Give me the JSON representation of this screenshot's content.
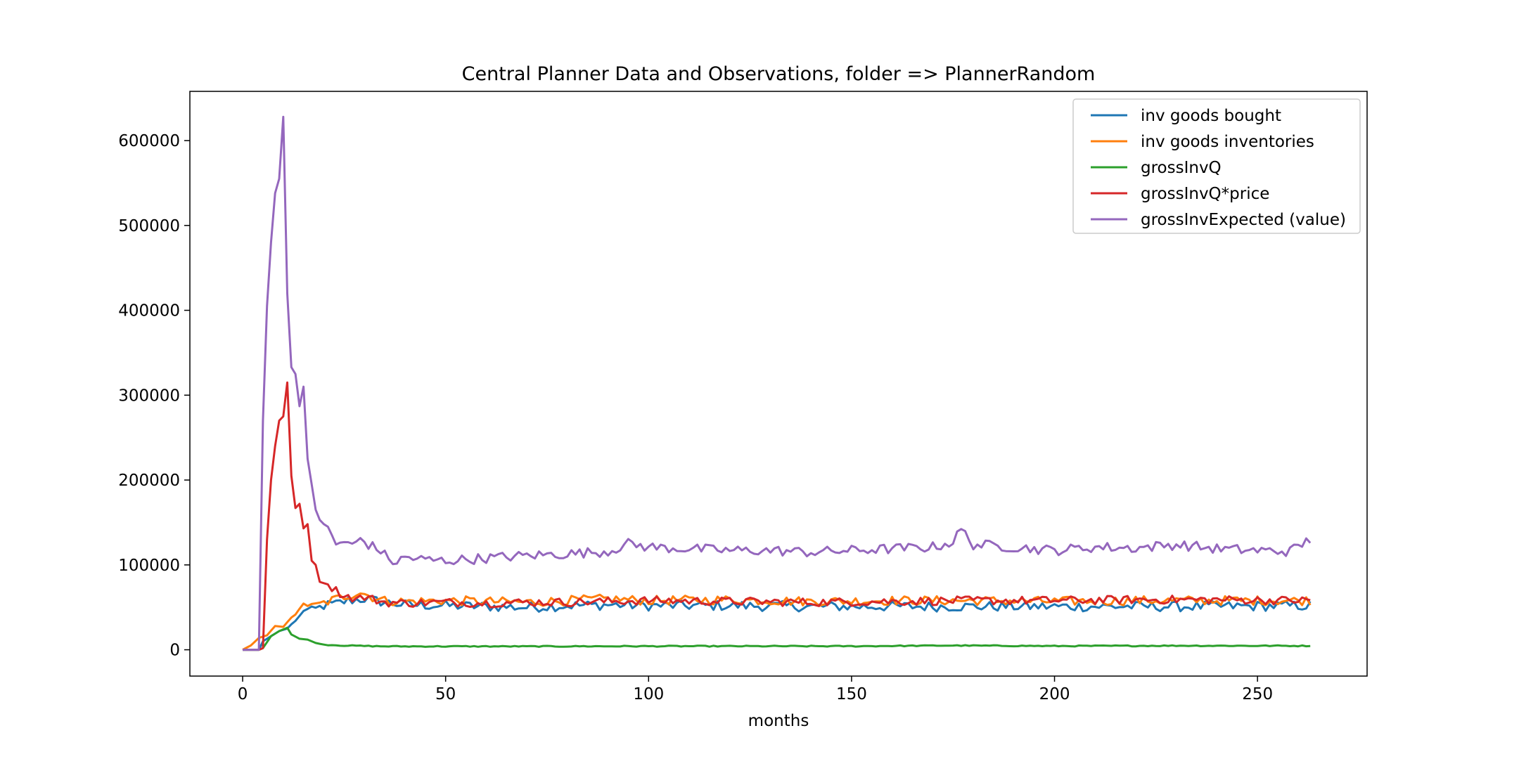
{
  "chart_data": {
    "type": "line",
    "title": "Central Planner Data and Observations, folder => PlannerRandom",
    "xlabel": "months",
    "ylabel": "",
    "xlim": [
      -13,
      277
    ],
    "ylim": [
      -31000,
      658000
    ],
    "xticks": [
      0,
      50,
      100,
      150,
      200,
      250
    ],
    "yticks": [
      0,
      100000,
      200000,
      300000,
      400000,
      500000,
      600000
    ],
    "grid": false,
    "legend_position": "top-right",
    "n_points": 264,
    "series": [
      {
        "name": "inv goods bought",
        "color": "#1f77b4",
        "anchors": [
          [
            0,
            0
          ],
          [
            4,
            0
          ],
          [
            5,
            10000
          ],
          [
            7,
            16000
          ],
          [
            9,
            22000
          ],
          [
            11,
            25000
          ],
          [
            12,
            30000
          ],
          [
            14,
            38000
          ],
          [
            15,
            48000
          ],
          [
            17,
            45000
          ],
          [
            20,
            52000
          ],
          [
            23,
            54000
          ],
          [
            26,
            58000
          ],
          [
            30,
            60000
          ],
          [
            35,
            56000
          ],
          [
            40,
            53000
          ],
          [
            50,
            52000
          ],
          [
            60,
            51000
          ],
          [
            70,
            50000
          ],
          [
            80,
            52000
          ],
          [
            90,
            53000
          ],
          [
            100,
            52000
          ],
          [
            120,
            52000
          ],
          [
            140,
            51000
          ],
          [
            160,
            51000
          ],
          [
            180,
            51000
          ],
          [
            200,
            51000
          ],
          [
            220,
            51000
          ],
          [
            240,
            51000
          ],
          [
            263,
            52000
          ]
        ],
        "noise": 6000,
        "noise_start": 14
      },
      {
        "name": "inv goods inventories",
        "color": "#ff7f0e",
        "anchors": [
          [
            0,
            0
          ],
          [
            2,
            5000
          ],
          [
            4,
            14000
          ],
          [
            6,
            17000
          ],
          [
            8,
            28000
          ],
          [
            10,
            27000
          ],
          [
            12,
            38000
          ],
          [
            14,
            45000
          ],
          [
            15,
            57000
          ],
          [
            17,
            50000
          ],
          [
            20,
            55000
          ],
          [
            23,
            60000
          ],
          [
            26,
            64000
          ],
          [
            29,
            68000
          ],
          [
            32,
            62000
          ],
          [
            35,
            58000
          ],
          [
            40,
            57000
          ],
          [
            50,
            58000
          ],
          [
            60,
            57000
          ],
          [
            70,
            56000
          ],
          [
            80,
            58000
          ],
          [
            90,
            60000
          ],
          [
            100,
            58000
          ],
          [
            120,
            59000
          ],
          [
            140,
            57000
          ],
          [
            160,
            58000
          ],
          [
            180,
            58000
          ],
          [
            200,
            57000
          ],
          [
            220,
            58000
          ],
          [
            240,
            58000
          ],
          [
            263,
            58000
          ]
        ],
        "noise": 5500,
        "noise_start": 14
      },
      {
        "name": "grossInvQ",
        "color": "#2ca02c",
        "anchors": [
          [
            0,
            0
          ],
          [
            4,
            0
          ],
          [
            5,
            2000
          ],
          [
            7,
            16000
          ],
          [
            9,
            22000
          ],
          [
            11,
            26000
          ],
          [
            12,
            18000
          ],
          [
            14,
            13000
          ],
          [
            16,
            12000
          ],
          [
            18,
            8000
          ],
          [
            20,
            6000
          ],
          [
            25,
            5000
          ],
          [
            35,
            4000
          ],
          [
            50,
            4000
          ],
          [
            70,
            4000
          ],
          [
            100,
            4200
          ],
          [
            150,
            4200
          ],
          [
            175,
            5000
          ],
          [
            200,
            4400
          ],
          [
            230,
            4800
          ],
          [
            263,
            4600
          ]
        ],
        "noise": 600,
        "noise_start": 20
      },
      {
        "name": "grossInvQ*price",
        "color": "#d62728",
        "anchors": [
          [
            0,
            0
          ],
          [
            4,
            0
          ],
          [
            5,
            2000
          ],
          [
            6,
            130000
          ],
          [
            7,
            200000
          ],
          [
            8,
            240000
          ],
          [
            9,
            270000
          ],
          [
            10,
            275000
          ],
          [
            11,
            315000
          ],
          [
            12,
            205000
          ],
          [
            13,
            167000
          ],
          [
            14,
            172000
          ],
          [
            15,
            143000
          ],
          [
            16,
            148000
          ],
          [
            17,
            105000
          ],
          [
            18,
            100000
          ],
          [
            19,
            80000
          ],
          [
            21,
            77000
          ],
          [
            23,
            70000
          ],
          [
            25,
            64000
          ],
          [
            28,
            60000
          ],
          [
            30,
            62000
          ],
          [
            35,
            56000
          ],
          [
            40,
            55000
          ],
          [
            50,
            56000
          ],
          [
            60,
            55000
          ],
          [
            70,
            56000
          ],
          [
            80,
            56000
          ],
          [
            90,
            57000
          ],
          [
            100,
            58000
          ],
          [
            120,
            57000
          ],
          [
            140,
            56000
          ],
          [
            160,
            57000
          ],
          [
            180,
            58000
          ],
          [
            200,
            58000
          ],
          [
            220,
            59000
          ],
          [
            240,
            59000
          ],
          [
            263,
            58000
          ]
        ],
        "noise": 5000,
        "noise_start": 22
      },
      {
        "name": "grossInvExpected (value)",
        "color": "#9467bd",
        "anchors": [
          [
            0,
            0
          ],
          [
            4,
            0
          ],
          [
            5,
            270000
          ],
          [
            6,
            405000
          ],
          [
            7,
            480000
          ],
          [
            8,
            538000
          ],
          [
            9,
            555000
          ],
          [
            10,
            628000
          ],
          [
            11,
            420000
          ],
          [
            12,
            333000
          ],
          [
            13,
            325000
          ],
          [
            14,
            287000
          ],
          [
            15,
            310000
          ],
          [
            16,
            225000
          ],
          [
            17,
            195000
          ],
          [
            18,
            165000
          ],
          [
            19,
            153000
          ],
          [
            20,
            148000
          ],
          [
            21,
            145000
          ],
          [
            22,
            135000
          ],
          [
            23,
            124000
          ],
          [
            25,
            128000
          ],
          [
            27,
            122000
          ],
          [
            29,
            131000
          ],
          [
            31,
            124000
          ],
          [
            34,
            117000
          ],
          [
            36,
            106000
          ],
          [
            38,
            103000
          ],
          [
            40,
            109000
          ],
          [
            45,
            106000
          ],
          [
            50,
            105000
          ],
          [
            60,
            108000
          ],
          [
            70,
            111000
          ],
          [
            80,
            113000
          ],
          [
            90,
            116000
          ],
          [
            95,
            125000
          ],
          [
            100,
            121000
          ],
          [
            110,
            119000
          ],
          [
            120,
            117000
          ],
          [
            130,
            117000
          ],
          [
            140,
            115000
          ],
          [
            150,
            117000
          ],
          [
            160,
            119000
          ],
          [
            170,
            121000
          ],
          [
            175,
            127000
          ],
          [
            177,
            142000
          ],
          [
            180,
            124000
          ],
          [
            190,
            121000
          ],
          [
            200,
            117000
          ],
          [
            210,
            121000
          ],
          [
            220,
            120000
          ],
          [
            230,
            124000
          ],
          [
            240,
            119000
          ],
          [
            250,
            117000
          ],
          [
            258,
            116000
          ],
          [
            263,
            130000
          ]
        ],
        "noise": 6000,
        "noise_start": 24
      }
    ]
  }
}
